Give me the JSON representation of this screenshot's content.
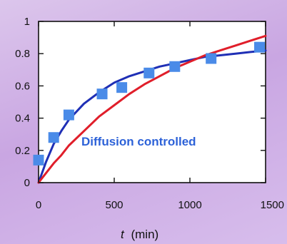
{
  "chart_data": {
    "type": "scatter",
    "title": "",
    "xlabel_var": "t",
    "xlabel_unit": "(min)",
    "ylabel": "",
    "xlim": [
      0,
      1500
    ],
    "ylim": [
      0,
      1
    ],
    "xticks": [
      0,
      500,
      1000,
      1500
    ],
    "xtick_labels": [
      "0",
      "500",
      "1000",
      "1500"
    ],
    "yticks": [
      0,
      0.2,
      0.4,
      0.6,
      0.8,
      1
    ],
    "ytick_labels": [
      "0",
      "0.2",
      "0.4",
      "0.6",
      "0.8",
      "1"
    ],
    "grid": false,
    "annotation": "Diffusion controlled",
    "colors": {
      "marker": "#4a8be8",
      "fit_blue": "#1f2fb5",
      "fit_red": "#e01e2a",
      "annotation": "#2d62d8",
      "plot_bg": "#ffffff"
    },
    "series": [
      {
        "kind": "markers",
        "x": [
          0,
          100,
          200,
          420,
          550,
          730,
          900,
          1140,
          1460
        ],
        "y": [
          0.14,
          0.28,
          0.42,
          0.55,
          0.59,
          0.68,
          0.72,
          0.77,
          0.84
        ]
      },
      {
        "kind": "line",
        "x": [
          0,
          50,
          100,
          150,
          200,
          300,
          400,
          500,
          600,
          700,
          800,
          900,
          1000,
          1100,
          1200,
          1300,
          1400,
          1500
        ],
        "y": [
          0,
          0.13,
          0.24,
          0.32,
          0.39,
          0.49,
          0.56,
          0.62,
          0.66,
          0.69,
          0.72,
          0.74,
          0.76,
          0.78,
          0.79,
          0.8,
          0.81,
          0.82
        ]
      },
      {
        "kind": "line",
        "x": [
          0,
          50,
          100,
          150,
          200,
          300,
          400,
          500,
          600,
          700,
          800,
          900,
          1000,
          1100,
          1200,
          1300,
          1400,
          1500
        ],
        "y": [
          0,
          0.06,
          0.12,
          0.17,
          0.23,
          0.32,
          0.41,
          0.48,
          0.55,
          0.61,
          0.66,
          0.71,
          0.75,
          0.79,
          0.82,
          0.85,
          0.88,
          0.91
        ]
      }
    ]
  }
}
